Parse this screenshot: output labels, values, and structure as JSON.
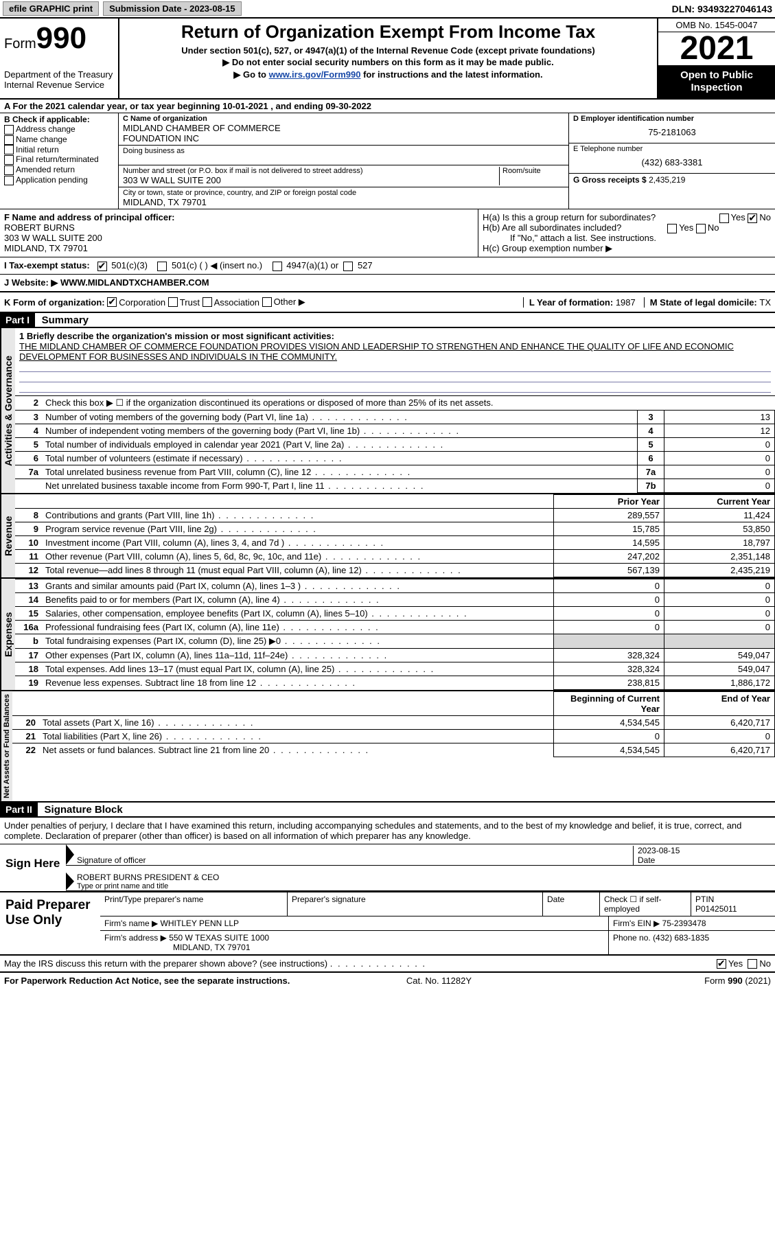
{
  "topbar": {
    "efile": "efile GRAPHIC print",
    "submission_label": "Submission Date - ",
    "submission_date": "2023-08-15",
    "dln_label": "DLN: ",
    "dln": "93493227046143"
  },
  "header": {
    "form_label": "Form",
    "form_no": "990",
    "dept": "Department of the Treasury",
    "irs": "Internal Revenue Service",
    "title": "Return of Organization Exempt From Income Tax",
    "sub1": "Under section 501(c), 527, or 4947(a)(1) of the Internal Revenue Code (except private foundations)",
    "sub2": "▶ Do not enter social security numbers on this form as it may be made public.",
    "sub3_pre": "▶ Go to ",
    "sub3_link": "www.irs.gov/Form990",
    "sub3_post": " for instructions and the latest information.",
    "omb": "OMB No. 1545-0047",
    "year": "2021",
    "inspect1": "Open to Public",
    "inspect2": "Inspection"
  },
  "line_a": {
    "text_pre": "A For the 2021 calendar year, or tax year beginning ",
    "begin": "10-01-2021",
    "mid": "  , and ending ",
    "end": "09-30-2022"
  },
  "col_b": {
    "header": "B Check if applicable:",
    "items": [
      "Address change",
      "Name change",
      "Initial return",
      "Final return/terminated",
      "Amended return",
      "Application pending"
    ]
  },
  "col_c": {
    "name_label": "C Name of organization",
    "name1": "MIDLAND CHAMBER OF COMMERCE",
    "name2": "FOUNDATION INC",
    "dba_label": "Doing business as",
    "street_label": "Number and street (or P.O. box if mail is not delivered to street address)",
    "room_label": "Room/suite",
    "street": "303 W WALL SUITE 200",
    "city_label": "City or town, state or province, country, and ZIP or foreign postal code",
    "city": "MIDLAND, TX  79701"
  },
  "col_d": {
    "ein_label": "D Employer identification number",
    "ein": "75-2181063",
    "phone_label": "E Telephone number",
    "phone": "(432) 683-3381",
    "gross_label": "G Gross receipts $ ",
    "gross": "2,435,219"
  },
  "sec_f": {
    "label": "F Name and address of principal officer:",
    "name": "ROBERT BURNS",
    "addr1": "303 W WALL SUITE 200",
    "addr2": "MIDLAND, TX  79701"
  },
  "sec_h": {
    "ha": "H(a)  Is this a group return for subordinates?",
    "hb": "H(b)  Are all subordinates included?",
    "hb_note": "If \"No,\" attach a list. See instructions.",
    "hc": "H(c)  Group exemption number ▶",
    "yes": "Yes",
    "no": "No",
    "ha_answer": "No"
  },
  "tax_status": {
    "label": "I  Tax-exempt status:",
    "opt1": "501(c)(3)",
    "opt2": "501(c) (  ) ◀ (insert no.)",
    "opt3": "4947(a)(1) or",
    "opt4": "527"
  },
  "website": {
    "label": "J  Website: ▶  ",
    "value": "WWW.MIDLANDTXCHAMBER.COM"
  },
  "line_k": {
    "label": "K Form of organization:",
    "opts": [
      "Corporation",
      "Trust",
      "Association",
      "Other ▶"
    ],
    "l_label": "L Year of formation: ",
    "l_val": "1987",
    "m_label": "M State of legal domicile: ",
    "m_val": "TX"
  },
  "part1": {
    "hdr": "Part I",
    "title": "Summary",
    "line1_label": "1  Briefly describe the organization's mission or most significant activities:",
    "mission": "THE MIDLAND CHAMBER OF COMMERCE FOUNDATION PROVIDES VISION AND LEADERSHIP TO STRENGTHEN AND ENHANCE THE QUALITY OF LIFE AND ECONOMIC DEVELOPMENT FOR BUSINESSES AND INDIVIDUALS IN THE COMMUNITY.",
    "line2": "Check this box ▶ ☐ if the organization discontinued its operations or disposed of more than 25% of its net assets.",
    "sections": {
      "activities": "Activities & Governance",
      "revenue": "Revenue",
      "expenses": "Expenses",
      "netassets": "Net Assets or Fund Balances"
    },
    "col_hdrs": {
      "prior": "Prior Year",
      "current": "Current Year",
      "begin": "Beginning of Current Year",
      "end": "End of Year"
    },
    "rows_gov": [
      {
        "n": "3",
        "t": "Number of voting members of the governing body (Part VI, line 1a)",
        "box": "3",
        "v": "13"
      },
      {
        "n": "4",
        "t": "Number of independent voting members of the governing body (Part VI, line 1b)",
        "box": "4",
        "v": "12"
      },
      {
        "n": "5",
        "t": "Total number of individuals employed in calendar year 2021 (Part V, line 2a)",
        "box": "5",
        "v": "0"
      },
      {
        "n": "6",
        "t": "Total number of volunteers (estimate if necessary)",
        "box": "6",
        "v": "0"
      },
      {
        "n": "7a",
        "t": "Total unrelated business revenue from Part VIII, column (C), line 12",
        "box": "7a",
        "v": "0"
      },
      {
        "n": "",
        "t": "Net unrelated business taxable income from Form 990-T, Part I, line 11",
        "box": "7b",
        "v": "0"
      }
    ],
    "rows_rev": [
      {
        "n": "8",
        "t": "Contributions and grants (Part VIII, line 1h)",
        "p": "289,557",
        "c": "11,424"
      },
      {
        "n": "9",
        "t": "Program service revenue (Part VIII, line 2g)",
        "p": "15,785",
        "c": "53,850"
      },
      {
        "n": "10",
        "t": "Investment income (Part VIII, column (A), lines 3, 4, and 7d )",
        "p": "14,595",
        "c": "18,797"
      },
      {
        "n": "11",
        "t": "Other revenue (Part VIII, column (A), lines 5, 6d, 8c, 9c, 10c, and 11e)",
        "p": "247,202",
        "c": "2,351,148"
      },
      {
        "n": "12",
        "t": "Total revenue—add lines 8 through 11 (must equal Part VIII, column (A), line 12)",
        "p": "567,139",
        "c": "2,435,219"
      }
    ],
    "rows_exp": [
      {
        "n": "13",
        "t": "Grants and similar amounts paid (Part IX, column (A), lines 1–3 )",
        "p": "0",
        "c": "0"
      },
      {
        "n": "14",
        "t": "Benefits paid to or for members (Part IX, column (A), line 4)",
        "p": "0",
        "c": "0"
      },
      {
        "n": "15",
        "t": "Salaries, other compensation, employee benefits (Part IX, column (A), lines 5–10)",
        "p": "0",
        "c": "0"
      },
      {
        "n": "16a",
        "t": "Professional fundraising fees (Part IX, column (A), line 11e)",
        "p": "0",
        "c": "0"
      },
      {
        "n": "b",
        "t": "Total fundraising expenses (Part IX, column (D), line 25) ▶0",
        "p": "",
        "c": "",
        "shade": true
      },
      {
        "n": "17",
        "t": "Other expenses (Part IX, column (A), lines 11a–11d, 11f–24e)",
        "p": "328,324",
        "c": "549,047"
      },
      {
        "n": "18",
        "t": "Total expenses. Add lines 13–17 (must equal Part IX, column (A), line 25)",
        "p": "328,324",
        "c": "549,047"
      },
      {
        "n": "19",
        "t": "Revenue less expenses. Subtract line 18 from line 12",
        "p": "238,815",
        "c": "1,886,172"
      }
    ],
    "rows_net": [
      {
        "n": "20",
        "t": "Total assets (Part X, line 16)",
        "p": "4,534,545",
        "c": "6,420,717"
      },
      {
        "n": "21",
        "t": "Total liabilities (Part X, line 26)",
        "p": "0",
        "c": "0"
      },
      {
        "n": "22",
        "t": "Net assets or fund balances. Subtract line 21 from line 20",
        "p": "4,534,545",
        "c": "6,420,717"
      }
    ]
  },
  "part2": {
    "hdr": "Part II",
    "title": "Signature Block",
    "decl": "Under penalties of perjury, I declare that I have examined this return, including accompanying schedules and statements, and to the best of my knowledge and belief, it is true, correct, and complete. Declaration of preparer (other than officer) is based on all information of which preparer has any knowledge.",
    "sign_here": "Sign Here",
    "sig_officer": "Signature of officer",
    "sig_date": "2023-08-15",
    "date_label": "Date",
    "name_title": "ROBERT BURNS  PRESIDENT & CEO",
    "name_label": "Type or print name and title"
  },
  "preparer": {
    "label": "Paid Preparer Use Only",
    "print_label": "Print/Type preparer's name",
    "sig_label": "Preparer's signature",
    "date_label": "Date",
    "check_label": "Check ☐ if self-employed",
    "ptin_label": "PTIN",
    "ptin": "P01425011",
    "firm_name_label": "Firm's name    ▶ ",
    "firm_name": "WHITLEY PENN LLP",
    "firm_ein_label": "Firm's EIN ▶ ",
    "firm_ein": "75-2393478",
    "firm_addr_label": "Firm's address ▶ ",
    "firm_addr1": "550 W TEXAS SUITE 1000",
    "firm_addr2": "MIDLAND, TX  79701",
    "phone_label": "Phone no. ",
    "phone": "(432) 683-1835"
  },
  "discuss": {
    "text": "May the IRS discuss this return with the preparer shown above? (see instructions)",
    "yes": "Yes",
    "no": "No",
    "answer": "Yes"
  },
  "footer": {
    "left": "For Paperwork Reduction Act Notice, see the separate instructions.",
    "mid": "Cat. No. 11282Y",
    "right": "Form 990 (2021)"
  }
}
